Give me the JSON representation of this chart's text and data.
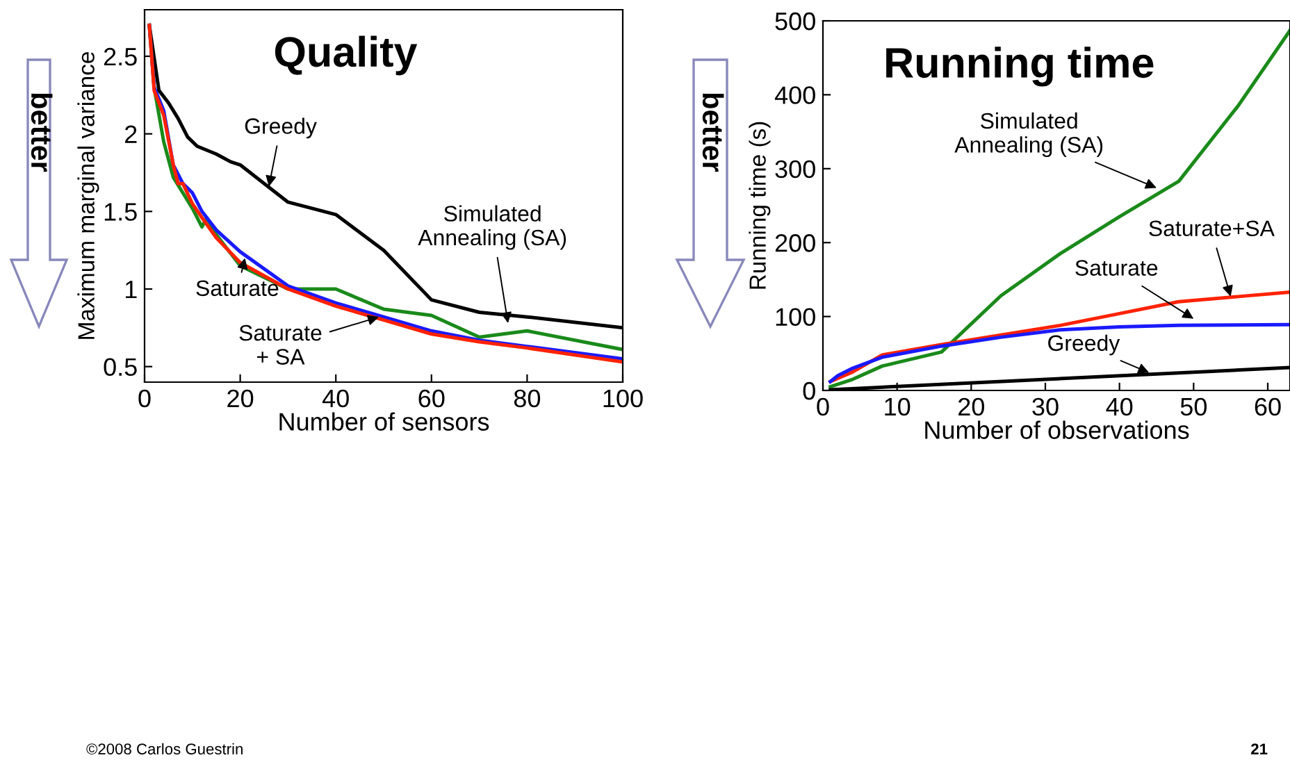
{
  "chart_data": [
    {
      "type": "line",
      "title": "Quality",
      "xlabel": "Number of sensors",
      "ylabel": "Maximum marginal variance",
      "xlim": [
        0,
        100
      ],
      "xticks": [
        0,
        20,
        40,
        60,
        80,
        100
      ],
      "ylim": [
        0.4,
        2.8
      ],
      "yticks": [
        0.5,
        1,
        1.5,
        2,
        2.5
      ],
      "grid": false,
      "legend": false,
      "marker": "none",
      "line_style": "solid",
      "series": [
        {
          "color": "#000000",
          "x": [
            1,
            3,
            5,
            7,
            9,
            11,
            15,
            18,
            20,
            30,
            40,
            50,
            60,
            70,
            80,
            100
          ],
          "values": [
            2.7,
            2.28,
            2.2,
            2.1,
            1.98,
            1.92,
            1.87,
            1.82,
            1.8,
            1.56,
            1.48,
            1.25,
            0.93,
            0.85,
            0.82,
            0.75
          ]
        },
        {
          "color": "#1a8a1a",
          "x": [
            1,
            2,
            4,
            6,
            8,
            10,
            12,
            13,
            15,
            20,
            30,
            40,
            50,
            60,
            70,
            80,
            100
          ],
          "values": [
            2.7,
            2.3,
            1.95,
            1.72,
            1.62,
            1.52,
            1.4,
            1.46,
            1.35,
            1.15,
            1.0,
            1.0,
            0.87,
            0.83,
            0.69,
            0.73,
            0.61
          ]
        },
        {
          "color": "#1a1aff",
          "x": [
            1,
            2,
            4,
            6,
            8,
            10,
            12,
            15,
            20,
            30,
            40,
            50,
            60,
            70,
            80,
            100
          ],
          "values": [
            2.7,
            2.3,
            2.15,
            1.8,
            1.68,
            1.62,
            1.5,
            1.38,
            1.24,
            1.02,
            0.91,
            0.82,
            0.73,
            0.67,
            0.63,
            0.55
          ]
        },
        {
          "color": "#ff2200",
          "x": [
            1,
            2,
            4,
            6,
            7,
            8,
            10,
            12,
            15,
            20,
            30,
            40,
            50,
            60,
            70,
            80,
            100
          ],
          "values": [
            2.7,
            2.28,
            2.12,
            1.8,
            1.68,
            1.68,
            1.55,
            1.46,
            1.33,
            1.17,
            1.0,
            0.89,
            0.8,
            0.71,
            0.66,
            0.62,
            0.53
          ]
        }
      ],
      "annotations": [
        "better",
        "©2008 Carlos Guestrin",
        "21",
        {
          "text": "Greedy",
          "x": 26,
          "y": 1.66
        },
        {
          "text": "Simulated\nAnnealing (SA)",
          "x": 76,
          "y": 0.78
        },
        {
          "text": "Saturate",
          "x": 21,
          "y": 1.2
        },
        {
          "text": "Saturate\n+ SA",
          "x": 49,
          "y": 0.82
        }
      ]
    },
    {
      "type": "line",
      "title": "Running time",
      "xlabel": "Number of observations",
      "ylabel": "Running time (s)",
      "xlim": [
        0,
        63
      ],
      "xticks": [
        0,
        10,
        20,
        30,
        40,
        50,
        60
      ],
      "ylim": [
        0,
        500
      ],
      "yticks": [
        0,
        100,
        200,
        300,
        400,
        500
      ],
      "grid": false,
      "legend": false,
      "marker": "none",
      "line_style": "solid",
      "series": [
        {
          "color": "#1a8a1a",
          "x": [
            1,
            4,
            8,
            16,
            24,
            32,
            40,
            48,
            56,
            63
          ],
          "values": [
            5,
            15,
            33,
            52,
            128,
            185,
            235,
            283,
            385,
            487
          ]
        },
        {
          "color": "#ff2200",
          "x": [
            1,
            4,
            8,
            16,
            24,
            32,
            40,
            48,
            56,
            63
          ],
          "values": [
            12,
            25,
            48,
            62,
            75,
            88,
            104,
            120,
            127,
            133
          ]
        },
        {
          "color": "#1a1aff",
          "x": [
            1,
            2,
            4,
            8,
            16,
            24,
            32,
            40,
            48,
            63
          ],
          "values": [
            12,
            20,
            30,
            45,
            60,
            72,
            82,
            86,
            88,
            89
          ]
        },
        {
          "color": "#000000",
          "x": [
            1,
            63
          ],
          "values": [
            1,
            31
          ]
        }
      ],
      "annotations": [
        "better",
        {
          "text": "Simulated\nAnnealing (SA)",
          "x": 45,
          "y": 274
        },
        {
          "text": "Saturate+SA",
          "x": 55,
          "y": 127
        },
        {
          "text": "Saturate",
          "x": 50,
          "y": 97
        },
        {
          "text": "Greedy",
          "x": 44,
          "y": 24
        }
      ]
    }
  ]
}
